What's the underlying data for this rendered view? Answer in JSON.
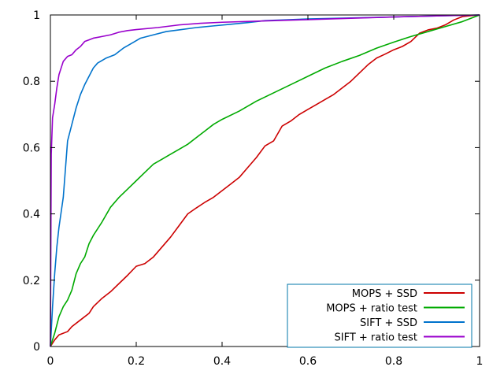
{
  "chart_data": {
    "type": "line",
    "title": "",
    "xlabel": "",
    "ylabel": "",
    "xlim": [
      0,
      1
    ],
    "ylim": [
      0,
      1
    ],
    "grid": false,
    "legend_position": "bottom-right",
    "x_ticks": [
      {
        "value": 0,
        "label": "0"
      },
      {
        "value": 0.2,
        "label": "0.2"
      },
      {
        "value": 0.4,
        "label": "0.4"
      },
      {
        "value": 0.6,
        "label": "0.6"
      },
      {
        "value": 0.8,
        "label": "0.8"
      },
      {
        "value": 1,
        "label": "1"
      }
    ],
    "y_ticks": [
      {
        "value": 0,
        "label": "0"
      },
      {
        "value": 0.2,
        "label": "0.2"
      },
      {
        "value": 0.4,
        "label": "0.4"
      },
      {
        "value": 0.6,
        "label": "0.6"
      },
      {
        "value": 0.8,
        "label": "0.8"
      },
      {
        "value": 1,
        "label": "1"
      }
    ],
    "series": [
      {
        "name": "MOPS + SSD",
        "color": "#cc0000",
        "points": [
          [
            0,
            0
          ],
          [
            0.01,
            0.02
          ],
          [
            0.02,
            0.035
          ],
          [
            0.04,
            0.045
          ],
          [
            0.05,
            0.06
          ],
          [
            0.07,
            0.08
          ],
          [
            0.09,
            0.1
          ],
          [
            0.1,
            0.12
          ],
          [
            0.12,
            0.145
          ],
          [
            0.14,
            0.165
          ],
          [
            0.16,
            0.19
          ],
          [
            0.18,
            0.215
          ],
          [
            0.2,
            0.242
          ],
          [
            0.22,
            0.25
          ],
          [
            0.24,
            0.27
          ],
          [
            0.26,
            0.3
          ],
          [
            0.28,
            0.33
          ],
          [
            0.3,
            0.365
          ],
          [
            0.32,
            0.4
          ],
          [
            0.34,
            0.418
          ],
          [
            0.36,
            0.435
          ],
          [
            0.38,
            0.45
          ],
          [
            0.4,
            0.47
          ],
          [
            0.42,
            0.49
          ],
          [
            0.44,
            0.51
          ],
          [
            0.46,
            0.54
          ],
          [
            0.48,
            0.57
          ],
          [
            0.5,
            0.605
          ],
          [
            0.52,
            0.62
          ],
          [
            0.54,
            0.665
          ],
          [
            0.56,
            0.68
          ],
          [
            0.58,
            0.7
          ],
          [
            0.6,
            0.715
          ],
          [
            0.62,
            0.73
          ],
          [
            0.64,
            0.745
          ],
          [
            0.66,
            0.76
          ],
          [
            0.68,
            0.78
          ],
          [
            0.7,
            0.8
          ],
          [
            0.72,
            0.825
          ],
          [
            0.74,
            0.85
          ],
          [
            0.76,
            0.87
          ],
          [
            0.78,
            0.882
          ],
          [
            0.8,
            0.895
          ],
          [
            0.82,
            0.905
          ],
          [
            0.84,
            0.92
          ],
          [
            0.86,
            0.945
          ],
          [
            0.88,
            0.955
          ],
          [
            0.9,
            0.96
          ],
          [
            0.92,
            0.97
          ],
          [
            0.94,
            0.985
          ],
          [
            0.96,
            0.995
          ],
          [
            0.98,
            0.998
          ],
          [
            1,
            1
          ]
        ]
      },
      {
        "name": "MOPS + ratio test",
        "color": "#00aa00",
        "points": [
          [
            0,
            0
          ],
          [
            0.01,
            0.04
          ],
          [
            0.02,
            0.09
          ],
          [
            0.03,
            0.12
          ],
          [
            0.04,
            0.14
          ],
          [
            0.05,
            0.17
          ],
          [
            0.06,
            0.22
          ],
          [
            0.07,
            0.25
          ],
          [
            0.08,
            0.27
          ],
          [
            0.09,
            0.31
          ],
          [
            0.1,
            0.335
          ],
          [
            0.12,
            0.375
          ],
          [
            0.14,
            0.42
          ],
          [
            0.16,
            0.45
          ],
          [
            0.18,
            0.475
          ],
          [
            0.2,
            0.5
          ],
          [
            0.22,
            0.525
          ],
          [
            0.24,
            0.55
          ],
          [
            0.26,
            0.565
          ],
          [
            0.28,
            0.58
          ],
          [
            0.3,
            0.595
          ],
          [
            0.32,
            0.61
          ],
          [
            0.34,
            0.63
          ],
          [
            0.36,
            0.65
          ],
          [
            0.38,
            0.67
          ],
          [
            0.4,
            0.685
          ],
          [
            0.44,
            0.71
          ],
          [
            0.48,
            0.74
          ],
          [
            0.52,
            0.765
          ],
          [
            0.56,
            0.79
          ],
          [
            0.6,
            0.815
          ],
          [
            0.64,
            0.84
          ],
          [
            0.68,
            0.86
          ],
          [
            0.72,
            0.878
          ],
          [
            0.76,
            0.9
          ],
          [
            0.8,
            0.918
          ],
          [
            0.84,
            0.935
          ],
          [
            0.88,
            0.95
          ],
          [
            0.92,
            0.965
          ],
          [
            0.96,
            0.98
          ],
          [
            1,
            1
          ]
        ]
      },
      {
        "name": "SIFT + SSD",
        "color": "#0073cc",
        "points": [
          [
            0,
            0
          ],
          [
            0.005,
            0.12
          ],
          [
            0.01,
            0.22
          ],
          [
            0.015,
            0.3
          ],
          [
            0.02,
            0.36
          ],
          [
            0.03,
            0.45
          ],
          [
            0.04,
            0.62
          ],
          [
            0.05,
            0.67
          ],
          [
            0.06,
            0.72
          ],
          [
            0.07,
            0.76
          ],
          [
            0.08,
            0.79
          ],
          [
            0.09,
            0.815
          ],
          [
            0.1,
            0.84
          ],
          [
            0.11,
            0.855
          ],
          [
            0.13,
            0.87
          ],
          [
            0.15,
            0.88
          ],
          [
            0.17,
            0.9
          ],
          [
            0.19,
            0.915
          ],
          [
            0.21,
            0.93
          ],
          [
            0.24,
            0.94
          ],
          [
            0.27,
            0.95
          ],
          [
            0.3,
            0.955
          ],
          [
            0.34,
            0.962
          ],
          [
            0.38,
            0.967
          ],
          [
            0.42,
            0.972
          ],
          [
            0.46,
            0.977
          ],
          [
            0.5,
            0.983
          ],
          [
            0.6,
            0.988
          ],
          [
            0.7,
            0.991
          ],
          [
            0.8,
            0.994
          ],
          [
            0.9,
            0.997
          ],
          [
            1,
            1
          ]
        ]
      },
      {
        "name": "SIFT + ratio test",
        "color": "#9900cc",
        "points": [
          [
            0,
            0
          ],
          [
            0.002,
            0.58
          ],
          [
            0.005,
            0.69
          ],
          [
            0.01,
            0.73
          ],
          [
            0.015,
            0.78
          ],
          [
            0.02,
            0.82
          ],
          [
            0.03,
            0.86
          ],
          [
            0.04,
            0.875
          ],
          [
            0.05,
            0.88
          ],
          [
            0.06,
            0.895
          ],
          [
            0.07,
            0.905
          ],
          [
            0.08,
            0.92
          ],
          [
            0.09,
            0.925
          ],
          [
            0.1,
            0.93
          ],
          [
            0.12,
            0.935
          ],
          [
            0.14,
            0.94
          ],
          [
            0.16,
            0.948
          ],
          [
            0.18,
            0.953
          ],
          [
            0.2,
            0.956
          ],
          [
            0.25,
            0.962
          ],
          [
            0.3,
            0.97
          ],
          [
            0.35,
            0.975
          ],
          [
            0.4,
            0.978
          ],
          [
            0.5,
            0.982
          ],
          [
            0.6,
            0.986
          ],
          [
            0.7,
            0.99
          ],
          [
            0.8,
            0.994
          ],
          [
            0.9,
            0.997
          ],
          [
            1,
            1
          ]
        ]
      }
    ]
  }
}
